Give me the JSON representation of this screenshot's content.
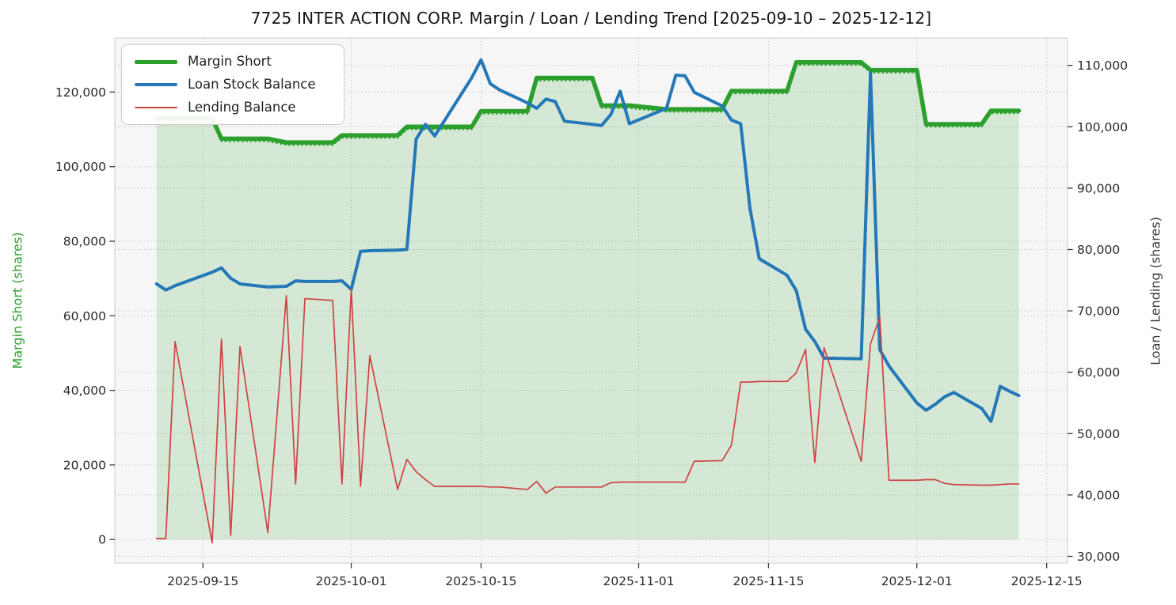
{
  "title": "7725 INTER ACTION CORP. Margin / Loan / Lending Trend [2025-09-10 – 2025-12-12]",
  "legend": {
    "items": [
      {
        "label": "Margin Short",
        "color": "#2ca02c",
        "line_width": 5
      },
      {
        "label": "Loan Stock Balance",
        "color": "#2478b8",
        "line_width": 4
      },
      {
        "label": "Lending Balance",
        "color": "#cf4242",
        "line_width": 2
      }
    ]
  },
  "axes": {
    "left": {
      "label": "Margin Short (shares)",
      "color": "#2ca02c"
    },
    "right": {
      "label": "Loan / Lending (shares)",
      "color": "#3a3a3a"
    },
    "bottom": {
      "tick_labels": [
        "2025-09-15",
        "2025-10-01",
        "2025-10-15",
        "2025-11-01",
        "2025-11-15",
        "2025-12-01",
        "2025-12-15"
      ]
    }
  },
  "chart_data": {
    "type": "line",
    "title": "7725 INTER ACTION CORP. Margin / Loan / Lending Trend [2025-09-10 – 2025-12-12]",
    "xlabel": "",
    "ylabel_left": "Margin Short (shares)",
    "ylabel_right": "Loan / Lending (shares)",
    "plot_bg": "#f6f6f7",
    "grid": true,
    "legend_position": "upper-left",
    "xlim": [
      "2025-09-05T12:00:00",
      "2025-12-17T06:00:00"
    ],
    "x_ticks": [
      "2025-09-15",
      "2025-10-01",
      "2025-10-15",
      "2025-11-01",
      "2025-11-15",
      "2025-12-01",
      "2025-12-15"
    ],
    "y_left": {
      "lim": [
        -6320,
        134510
      ],
      "ticks": [
        0,
        20000,
        40000,
        60000,
        80000,
        100000,
        120000
      ]
    },
    "y_right": {
      "lim": [
        28905,
        114470
      ],
      "ticks": [
        30000,
        40000,
        50000,
        60000,
        70000,
        80000,
        90000,
        100000,
        110000
      ]
    },
    "dates": [
      "2025-09-10",
      "2025-09-11",
      "2025-09-12",
      "2025-09-16",
      "2025-09-17",
      "2025-09-18",
      "2025-09-19",
      "2025-09-22",
      "2025-09-24",
      "2025-09-25",
      "2025-09-26",
      "2025-09-29",
      "2025-09-30",
      "2025-10-01",
      "2025-10-02",
      "2025-10-03",
      "2025-10-06",
      "2025-10-07",
      "2025-10-08",
      "2025-10-09",
      "2025-10-10",
      "2025-10-14",
      "2025-10-15",
      "2025-10-16",
      "2025-10-17",
      "2025-10-20",
      "2025-10-21",
      "2025-10-22",
      "2025-10-23",
      "2025-10-24",
      "2025-10-27",
      "2025-10-28",
      "2025-10-29",
      "2025-10-30",
      "2025-10-31",
      "2025-11-04",
      "2025-11-05",
      "2025-11-06",
      "2025-11-07",
      "2025-11-10",
      "2025-11-11",
      "2025-11-12",
      "2025-11-13",
      "2025-11-14",
      "2025-11-17",
      "2025-11-18",
      "2025-11-19",
      "2025-11-20",
      "2025-11-21",
      "2025-11-25",
      "2025-11-26",
      "2025-11-27",
      "2025-11-28",
      "2025-12-01",
      "2025-12-02",
      "2025-12-03",
      "2025-12-04",
      "2025-12-05",
      "2025-12-08",
      "2025-12-09",
      "2025-12-10",
      "2025-12-11",
      "2025-12-12"
    ],
    "series": [
      {
        "name": "Margin Short",
        "axis": "left",
        "style": "area+line",
        "color": "#2ca02c",
        "fill": "rgba(44,160,44,0.16)",
        "line_width": 5.5,
        "values": [
          113000,
          113000,
          113000,
          113000,
          107500,
          107500,
          107500,
          107500,
          106500,
          106500,
          106500,
          106500,
          108400,
          108400,
          108400,
          108400,
          108400,
          110700,
          110700,
          110700,
          110700,
          110700,
          114900,
          114900,
          114900,
          114900,
          123800,
          123800,
          123800,
          123800,
          123800,
          116400,
          116400,
          116400,
          116400,
          115400,
          115400,
          115400,
          115400,
          115400,
          120300,
          120300,
          120300,
          120300,
          120300,
          128000,
          128000,
          128000,
          128000,
          128000,
          125900,
          125900,
          125900,
          125900,
          111400,
          111400,
          111400,
          111400,
          111400,
          115000,
          115000,
          115000,
          115000
        ]
      },
      {
        "name": "Loan Stock Balance",
        "axis": "right",
        "style": "line",
        "color": "#2478b8",
        "line_width": 4,
        "values": [
          74400,
          73400,
          74100,
          76300,
          77000,
          75300,
          74400,
          73900,
          74000,
          74900,
          74800,
          74800,
          74900,
          73500,
          79700,
          79800,
          79900,
          80000,
          98000,
          100400,
          98500,
          108000,
          110900,
          107000,
          106000,
          103900,
          103000,
          104500,
          104100,
          100900,
          100400,
          100200,
          102000,
          105800,
          100500,
          103000,
          108400,
          108300,
          105600,
          103400,
          101100,
          100500,
          86700,
          78500,
          75800,
          73300,
          67000,
          65000,
          62300,
          62200,
          108800,
          63700,
          61000,
          55000,
          53800,
          54800,
          56000,
          56700,
          54100,
          52000,
          57700,
          56900,
          56200
        ]
      },
      {
        "name": "Lending Balance",
        "axis": "right",
        "style": "line",
        "color": "#cf4242",
        "line_width": 1.7,
        "values": [
          32900,
          32900,
          65000,
          32200,
          65400,
          33400,
          64200,
          33900,
          72500,
          41800,
          72000,
          71700,
          41800,
          73600,
          41400,
          62700,
          40900,
          45800,
          43800,
          42500,
          41400,
          41400,
          41400,
          41300,
          41300,
          40900,
          42200,
          40300,
          41300,
          41300,
          41300,
          41300,
          42000,
          42100,
          42100,
          42100,
          42100,
          42100,
          45500,
          45600,
          48100,
          58400,
          58400,
          58500,
          58500,
          59900,
          63700,
          45300,
          64000,
          45500,
          64600,
          69000,
          42400,
          42400,
          42500,
          42500,
          41900,
          41700,
          41600,
          41600,
          41700,
          41800,
          41800
        ]
      }
    ]
  }
}
